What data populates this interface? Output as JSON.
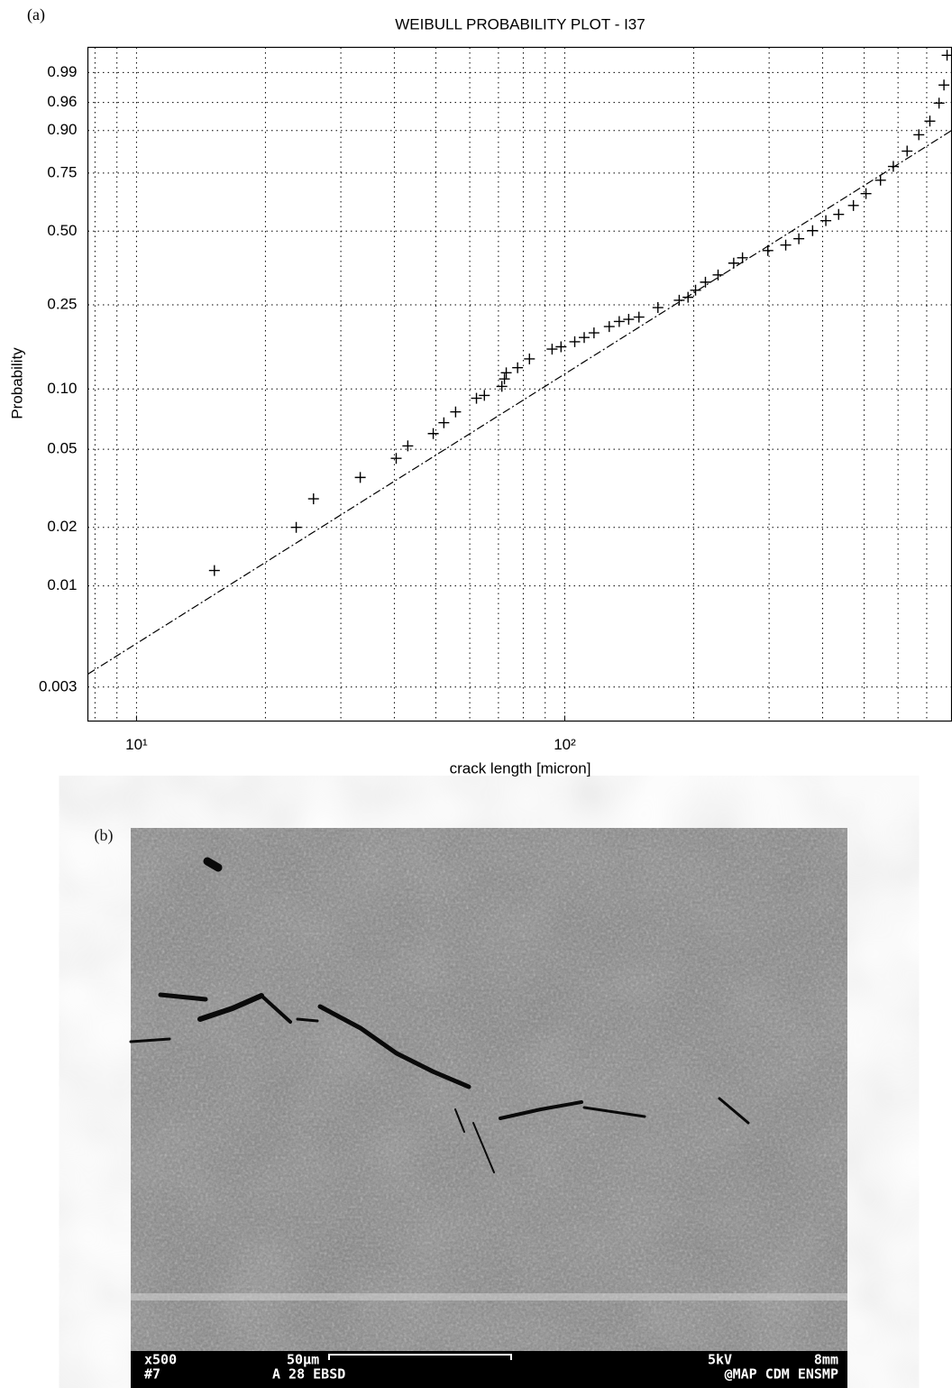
{
  "panel_labels": [
    "(a)",
    "(b)"
  ],
  "chart_data": {
    "type": "scatter",
    "title": "WEIBULL PROBABILITY PLOT - I37",
    "x_label": "crack length [micron]",
    "y_label": "Probability",
    "xscale": "log",
    "yscale": "weibull",
    "grid": true,
    "color": "#000000",
    "xlim": [
      7.7,
      800
    ],
    "ylim": [
      0.002,
      0.998
    ],
    "xticks": [
      {
        "value": 10,
        "label": "10¹"
      },
      {
        "value": 100,
        "label": "10²"
      }
    ],
    "x_minor_ticks": [
      8,
      9,
      20,
      30,
      40,
      50,
      60,
      70,
      80,
      90,
      200,
      300,
      400,
      500,
      600,
      700
    ],
    "yticks": [
      0.003,
      0.01,
      0.02,
      0.05,
      {
        "value": 0.1,
        "label": "0.10"
      },
      0.25,
      {
        "value": 0.5,
        "label": "0.50"
      },
      0.75,
      {
        "value": 0.9,
        "label": "0.90"
      },
      0.96,
      0.99
    ],
    "x": [
      15.2,
      23.6,
      25.9,
      33.3,
      40.4,
      43.0,
      49.3,
      52.2,
      55.6,
      62.2,
      64.9,
      71.3,
      72.3,
      73.0,
      77.6,
      82.7,
      93.4,
      98.0,
      105.5,
      111,
      117,
      127,
      134,
      141,
      149,
      165,
      185,
      194,
      202,
      213,
      228,
      248,
      260,
      298,
      328,
      352,
      379,
      407,
      436,
      472,
      505,
      546,
      585,
      630,
      671,
      712,
      748,
      768,
      781
    ],
    "values": [
      0.012,
      0.02,
      0.028,
      0.036,
      0.045,
      0.052,
      0.06,
      0.068,
      0.077,
      0.09,
      0.093,
      0.103,
      0.112,
      0.12,
      0.127,
      0.14,
      0.156,
      0.16,
      0.169,
      0.177,
      0.186,
      0.199,
      0.21,
      0.215,
      0.22,
      0.243,
      0.262,
      0.27,
      0.29,
      0.314,
      0.337,
      0.377,
      0.396,
      0.423,
      0.444,
      0.469,
      0.502,
      0.544,
      0.571,
      0.61,
      0.662,
      0.72,
      0.777,
      0.835,
      0.888,
      0.924,
      0.959,
      0.981,
      0.9965
    ],
    "fit": {
      "x": [
        7.7,
        800
      ],
      "values": [
        0.0035,
        0.9
      ]
    }
  },
  "micrograph": {
    "magnification": "x500",
    "number": "#7",
    "scale": "50μm",
    "detector": "A 28 EBSD",
    "voltage": "5kV",
    "distance": "8mm",
    "lab": "@MAP CDM ENSMP"
  }
}
